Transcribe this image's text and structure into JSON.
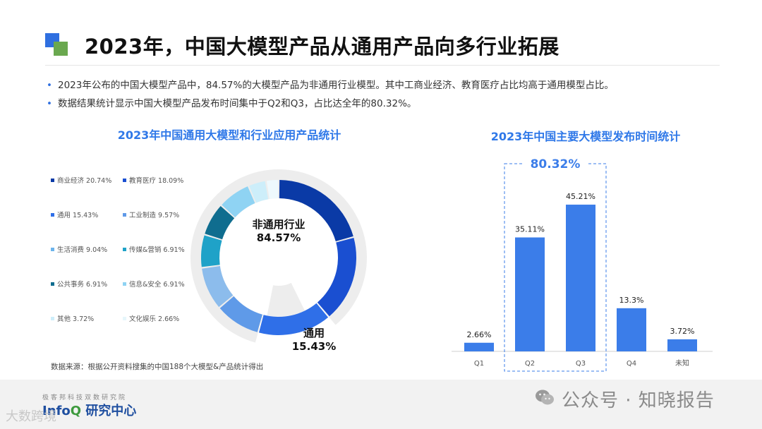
{
  "header": {
    "title": "2023年，中国大模型产品从通用产品向多行业拓展"
  },
  "bullets": [
    "2023年公布的中国大模型产品中，84.57%的大模型产品为非通用行业模型。其中工商业经济、教育医疗占比均高于通用模型占比。",
    "数据结果统计显示中国大模型产品发布时间集中于Q2和Q3，占比达全年的80.32%。"
  ],
  "source_note": "数据来源：根据公开资料搜集的中国188个大模型&产品统计得出",
  "footer": {
    "org_small": "极客邦科技双数研究院",
    "org_main_prefix": "Info",
    "org_main_accent": "Q",
    "org_main_suffix": " 研究中心",
    "watermark_left": "大数跨境",
    "watermark_right": "公众号 · 知晓报告"
  },
  "icons": {
    "logo": "square-logo-icon",
    "wechat": "wechat-icon"
  },
  "chart_data": [
    {
      "type": "pie",
      "title": "2023年中国通用大模型和行业应用产品统计",
      "center_label": "非通用行业",
      "center_value": "84.57%",
      "outer_label": "通用",
      "outer_value": "15.43%",
      "legend": [
        {
          "label": "商业经济 20.74%",
          "color": "#0a3aa6"
        },
        {
          "label": "教育医疗 18.09%",
          "color": "#1a4fd1"
        },
        {
          "label": "通用 15.43%",
          "color": "#2f6fe8"
        },
        {
          "label": "工业制造 9.57%",
          "color": "#5f9ae8"
        },
        {
          "label": "生活消费 9.04%",
          "color": "#6cb4ec"
        },
        {
          "label": "传媒&营销 6.91%",
          "color": "#1fa2c8"
        },
        {
          "label": "公共事务 6.91%",
          "color": "#0f6d8f"
        },
        {
          "label": "信息&安全 6.91%",
          "color": "#8fd3f3"
        },
        {
          "label": "其他 3.72%",
          "color": "#cdeefa"
        },
        {
          "label": "文化娱乐 2.66%",
          "color": "#e6f6fb"
        }
      ],
      "slices": [
        {
          "name": "商业经济",
          "value": 20.74,
          "color": "#0a3aa6"
        },
        {
          "name": "教育医疗",
          "value": 18.09,
          "color": "#1a4fd1"
        },
        {
          "name": "通用",
          "value": 15.43,
          "color": "#2f6fe8"
        },
        {
          "name": "工业制造",
          "value": 9.57,
          "color": "#5f9ae8"
        },
        {
          "name": "生活消费",
          "value": 9.04,
          "color": "#8cbcec"
        },
        {
          "name": "传媒&营销",
          "value": 6.91,
          "color": "#1fa2c8"
        },
        {
          "name": "公共事务",
          "value": 6.91,
          "color": "#0f6d8f"
        },
        {
          "name": "信息&安全",
          "value": 6.91,
          "color": "#8fd3f3"
        },
        {
          "name": "其他",
          "value": 3.72,
          "color": "#cdeefa"
        },
        {
          "name": "文化娱乐",
          "value": 2.66,
          "color": "#eef9fd"
        }
      ]
    },
    {
      "type": "bar",
      "title": "2023年中国主要大模型发布时间统计",
      "categories": [
        "Q1",
        "Q2",
        "Q3",
        "Q4",
        "未知"
      ],
      "values": [
        2.66,
        35.11,
        45.21,
        13.3,
        3.72
      ],
      "value_labels": [
        "2.66%",
        "35.11%",
        "45.21%",
        "13.3%",
        "3.72%"
      ],
      "highlight": {
        "categories": [
          "Q2",
          "Q3"
        ],
        "label": "80.32%"
      },
      "ylim": [
        0,
        50
      ],
      "color": "#3b7de9"
    }
  ]
}
